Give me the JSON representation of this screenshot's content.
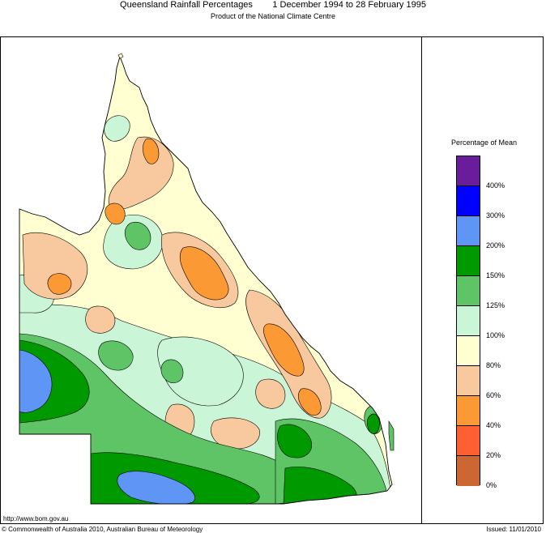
{
  "header": {
    "title": "Queensland Rainfall Percentages        1 December 1994 to 28 February 1995",
    "subtitle": "Product of the National Climate Centre"
  },
  "legend": {
    "title": "Percentage of Mean",
    "bands": [
      {
        "label": "400%",
        "color": "#6a1d9a"
      },
      {
        "label": "300%",
        "color": "#0000ff"
      },
      {
        "label": "200%",
        "color": "#5f95f4"
      },
      {
        "label": "150%",
        "color": "#009900"
      },
      {
        "label": "125%",
        "color": "#5fc466"
      },
      {
        "label": "100%",
        "color": "#cbf5d7"
      },
      {
        "label": "80%",
        "color": "#ffffd2"
      },
      {
        "label": "60%",
        "color": "#f8c89e"
      },
      {
        "label": "40%",
        "color": "#fb9935"
      },
      {
        "label": "20%",
        "color": "#ff5f33"
      },
      {
        "label": "0%",
        "color": "#cc6633"
      }
    ]
  },
  "footer": {
    "url": "http://www.bom.gov.au",
    "copyright": "© Commonwealth of Australia 2010, Australian Bureau of Meteorology",
    "issued": "Issued: 11/01/2010"
  },
  "colors": {
    "cream": "#ffffd2",
    "peach": "#f8c89e",
    "orange": "#fb9935",
    "lightgreen": "#cbf5d7",
    "midgreen": "#5fc466",
    "darkgreen": "#009900",
    "blue": "#5f95f4",
    "outline": "#000000"
  }
}
